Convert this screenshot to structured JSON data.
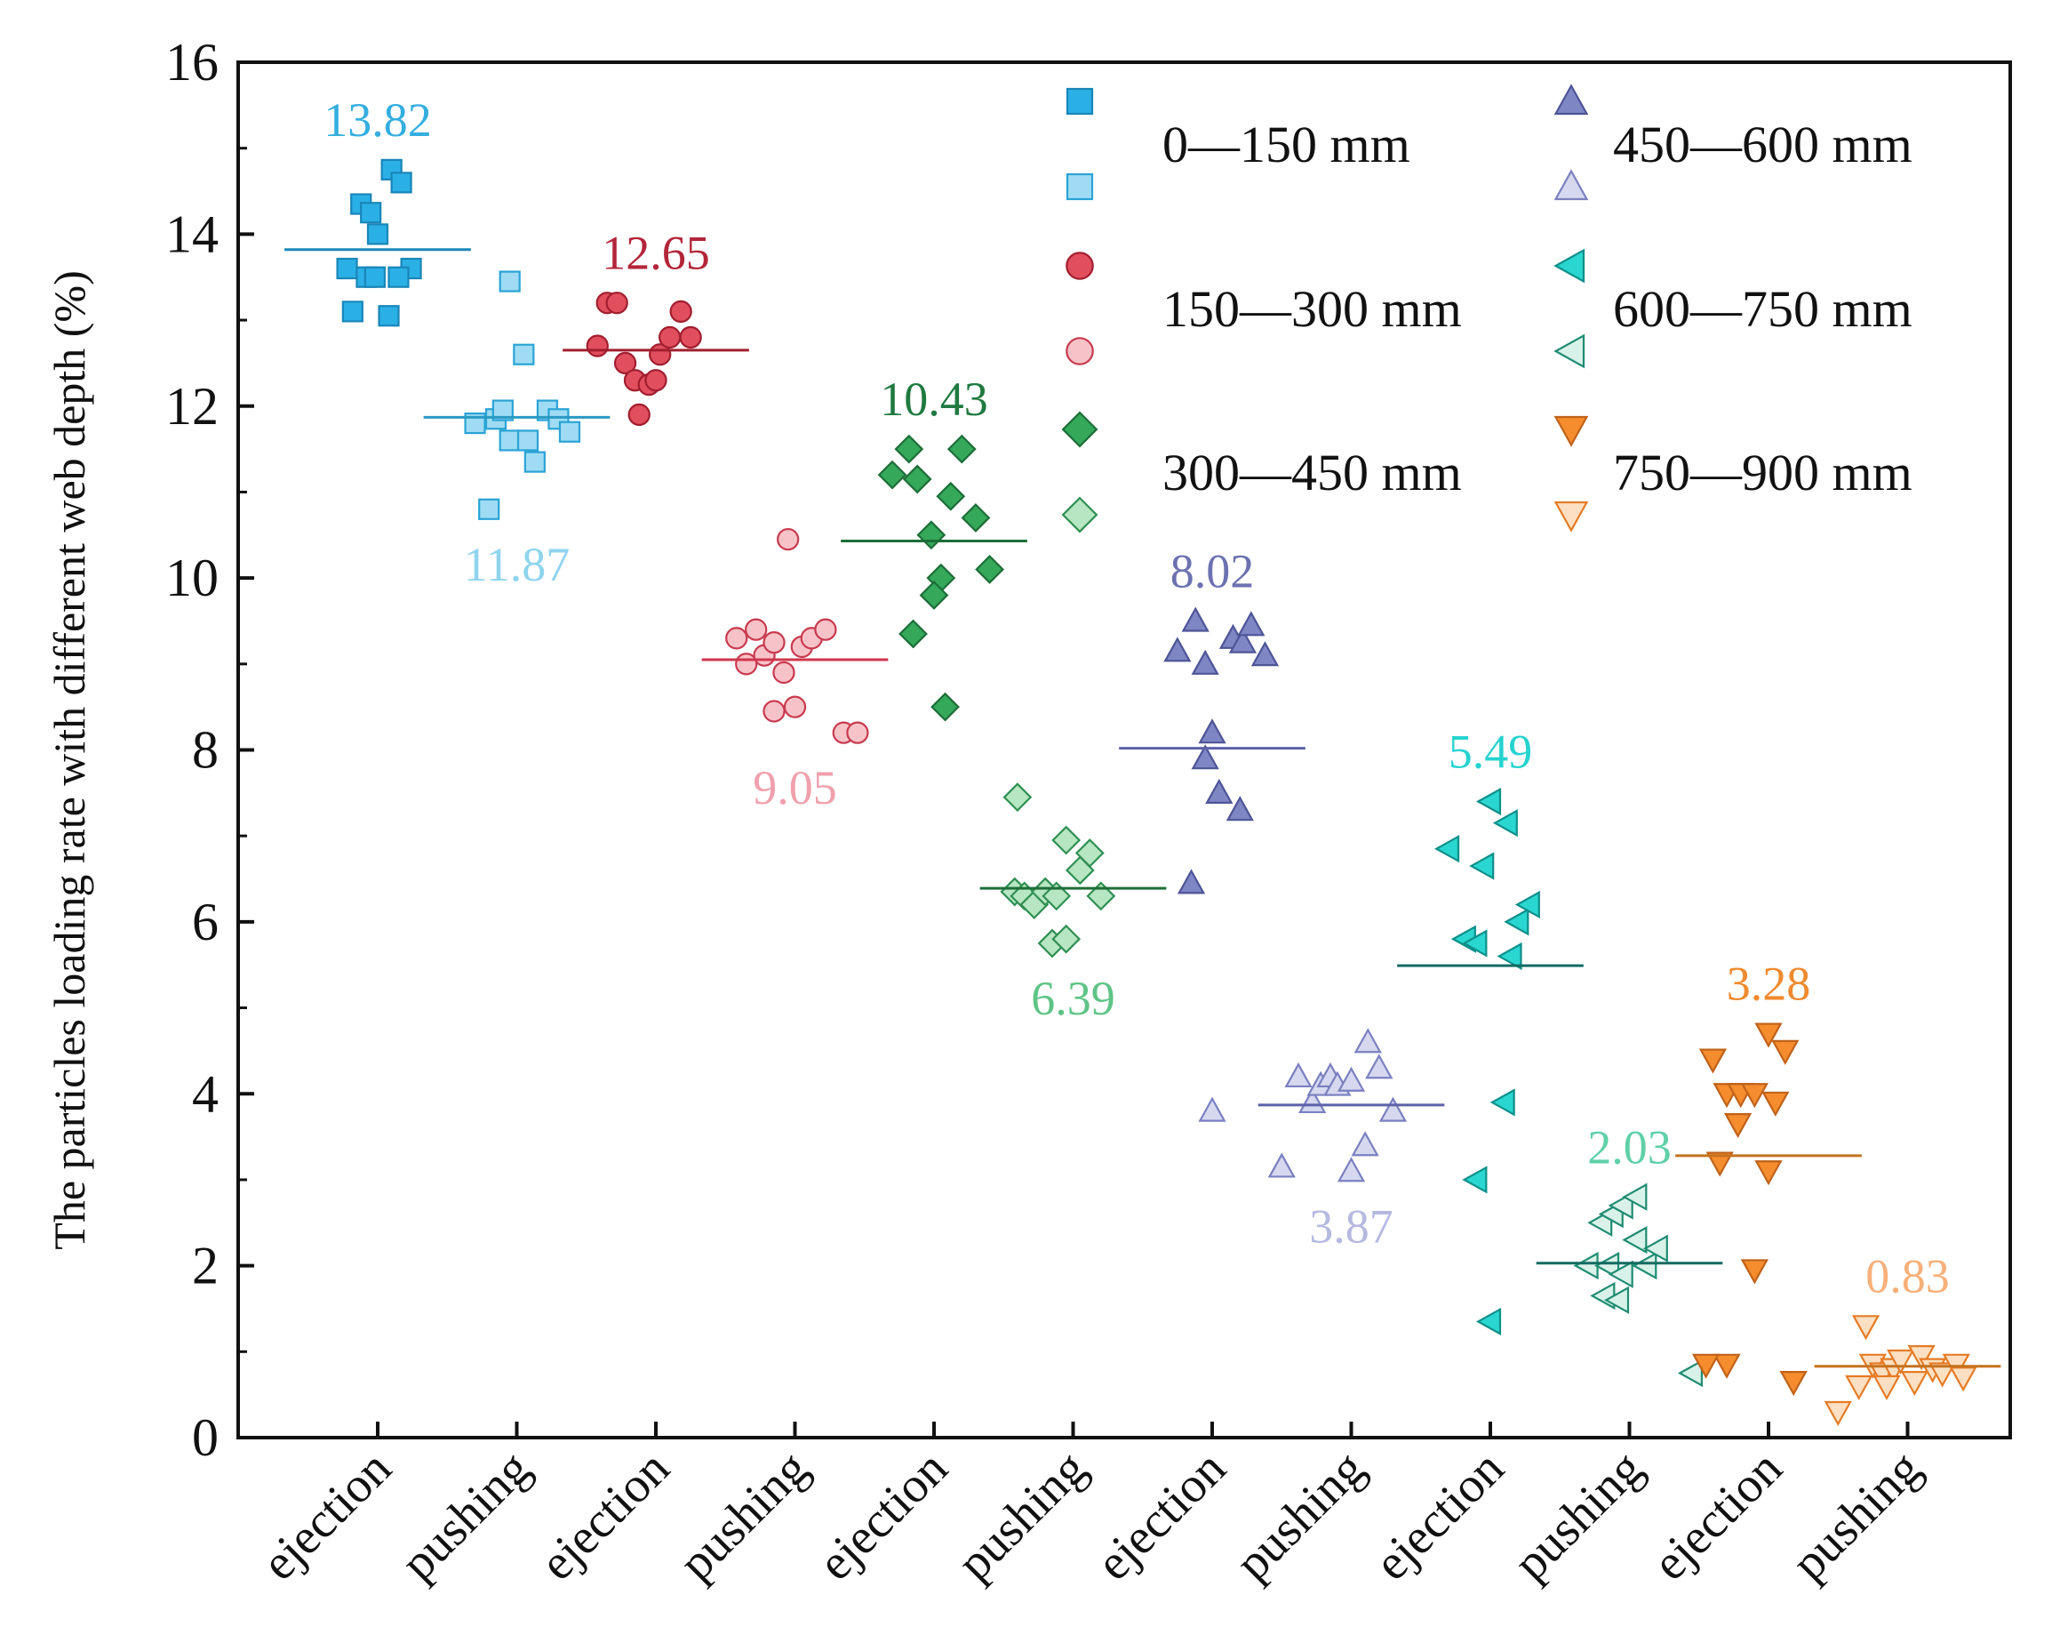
{
  "chart_data": {
    "type": "scatter",
    "title": "",
    "xlabel": "",
    "ylabel": "The particles loading rate with different web depth (%)",
    "ylim": [
      0,
      16
    ],
    "yticks": [
      0,
      2,
      4,
      6,
      8,
      10,
      12,
      14,
      16
    ],
    "y_minor_step": 1,
    "categories": [
      "ejection",
      "pushing",
      "ejection",
      "pushing",
      "ejection",
      "pushing",
      "ejection",
      "pushing",
      "ejection",
      "pushing",
      "ejection",
      "pushing"
    ],
    "grid": false,
    "legend_position": "top-right",
    "series": [
      {
        "name": "0—150 mm ejection",
        "legend": "0—150 mm",
        "category_index": 0,
        "marker": "square",
        "fill": "#2bb0e6",
        "stroke": "#1a86b8",
        "mean": 13.82,
        "mean_label": "13.82",
        "label_position": "above",
        "label_color": "#34aee0",
        "line_color": "#1a86b8",
        "points": [
          [
            -0.22,
            13.6
          ],
          [
            -0.12,
            14.35
          ],
          [
            -0.05,
            14.25
          ],
          [
            0.0,
            14.0
          ],
          [
            -0.18,
            13.1
          ],
          [
            -0.08,
            13.5
          ],
          [
            -0.02,
            13.5
          ],
          [
            0.1,
            14.75
          ],
          [
            0.17,
            14.6
          ],
          [
            0.24,
            13.6
          ],
          [
            0.15,
            13.5
          ],
          [
            0.08,
            13.05
          ]
        ]
      },
      {
        "name": "0—150 mm pushing",
        "legend": "",
        "category_index": 1,
        "marker": "square",
        "fill": "#9fdcf3",
        "stroke": "#2aa3d6",
        "mean": 11.87,
        "mean_label": "11.87",
        "label_position": "below",
        "label_color": "#8fd4ee",
        "line_color": "#2a9ac4",
        "points": [
          [
            -0.3,
            11.8
          ],
          [
            -0.15,
            11.85
          ],
          [
            -0.1,
            11.95
          ],
          [
            -0.05,
            11.6
          ],
          [
            0.08,
            11.6
          ],
          [
            0.13,
            11.35
          ],
          [
            0.22,
            11.95
          ],
          [
            0.3,
            11.85
          ],
          [
            0.38,
            11.7
          ],
          [
            -0.2,
            10.8
          ],
          [
            -0.05,
            13.45
          ],
          [
            0.05,
            12.6
          ]
        ]
      },
      {
        "name": "150—300 mm ejection",
        "legend": "150—300 mm",
        "category_index": 2,
        "marker": "circle",
        "fill": "#e14f5f",
        "stroke": "#a11e2e",
        "mean": 12.65,
        "mean_label": "12.65",
        "label_position": "above",
        "label_color": "#b3263a",
        "line_color": "#a11e2e",
        "points": [
          [
            -0.42,
            12.7
          ],
          [
            -0.35,
            13.2
          ],
          [
            -0.28,
            13.2
          ],
          [
            -0.22,
            12.5
          ],
          [
            -0.15,
            12.3
          ],
          [
            -0.05,
            12.25
          ],
          [
            0.03,
            12.6
          ],
          [
            0.1,
            12.8
          ],
          [
            0.18,
            13.1
          ],
          [
            0.25,
            12.8
          ],
          [
            -0.12,
            11.9
          ],
          [
            0.0,
            12.3
          ]
        ]
      },
      {
        "name": "150—300 mm pushing",
        "legend": "",
        "category_index": 3,
        "marker": "circle",
        "fill": "#f7c3c9",
        "stroke": "#c83a4e",
        "mean": 9.05,
        "mean_label": "9.05",
        "label_position": "below",
        "label_color": "#f0a0ad",
        "line_color": "#d0364d",
        "points": [
          [
            -0.42,
            9.3
          ],
          [
            -0.35,
            9.0
          ],
          [
            -0.28,
            9.4
          ],
          [
            -0.22,
            9.1
          ],
          [
            -0.15,
            9.25
          ],
          [
            -0.08,
            8.9
          ],
          [
            0.0,
            8.5
          ],
          [
            0.05,
            9.2
          ],
          [
            0.12,
            9.3
          ],
          [
            0.22,
            9.4
          ],
          [
            0.35,
            8.2
          ],
          [
            0.45,
            8.2
          ],
          [
            -0.05,
            10.45
          ],
          [
            -0.15,
            8.45
          ]
        ]
      },
      {
        "name": "300—450 mm ejection",
        "legend": "300—450 mm",
        "category_index": 4,
        "marker": "diamond",
        "fill": "#35a85a",
        "stroke": "#1d6e38",
        "mean": 10.43,
        "mean_label": "10.43",
        "label_position": "above",
        "label_color": "#1f7a40",
        "line_color": "#1d6e38",
        "points": [
          [
            -0.3,
            11.2
          ],
          [
            -0.18,
            11.5
          ],
          [
            -0.12,
            11.15
          ],
          [
            -0.02,
            10.5
          ],
          [
            0.05,
            10.0
          ],
          [
            0.12,
            10.95
          ],
          [
            0.2,
            11.5
          ],
          [
            0.3,
            10.7
          ],
          [
            0.4,
            10.1
          ],
          [
            -0.15,
            9.35
          ],
          [
            0.0,
            9.8
          ],
          [
            0.08,
            8.5
          ]
        ]
      },
      {
        "name": "300—450 mm pushing",
        "legend": "",
        "category_index": 5,
        "marker": "diamond",
        "fill": "#b7e6c2",
        "stroke": "#2f8f52",
        "mean": 6.39,
        "mean_label": "6.39",
        "label_position": "below",
        "label_color": "#5fc486",
        "line_color": "#1d6e38",
        "points": [
          [
            -0.42,
            6.35
          ],
          [
            -0.35,
            6.3
          ],
          [
            -0.28,
            6.2
          ],
          [
            -0.2,
            6.35
          ],
          [
            -0.12,
            6.3
          ],
          [
            -0.05,
            6.95
          ],
          [
            0.05,
            6.6
          ],
          [
            0.12,
            6.8
          ],
          [
            0.2,
            6.3
          ],
          [
            -0.15,
            5.75
          ],
          [
            -0.05,
            5.8
          ],
          [
            -0.4,
            7.45
          ]
        ]
      },
      {
        "name": "450—600 mm ejection",
        "legend": "450—600 mm",
        "category_index": 6,
        "marker": "triangle-up",
        "fill": "#7f86c4",
        "stroke": "#4e5597",
        "mean": 8.02,
        "mean_label": "8.02",
        "label_position": "above",
        "label_color": "#6c72b0",
        "line_color": "#5b62a8",
        "points": [
          [
            -0.25,
            9.15
          ],
          [
            -0.12,
            9.5
          ],
          [
            -0.05,
            9.0
          ],
          [
            0.0,
            8.2
          ],
          [
            -0.05,
            7.9
          ],
          [
            0.05,
            7.5
          ],
          [
            0.15,
            9.3
          ],
          [
            0.22,
            9.25
          ],
          [
            0.28,
            9.45
          ],
          [
            0.38,
            9.1
          ],
          [
            0.2,
            7.3
          ],
          [
            -0.15,
            6.45
          ]
        ]
      },
      {
        "name": "450—600 mm pushing",
        "legend": "",
        "category_index": 7,
        "marker": "triangle-up",
        "fill": "#d6d8ef",
        "stroke": "#7a80c0",
        "mean": 3.87,
        "mean_label": "3.87",
        "label_position": "below",
        "label_color": "#b6b9e0",
        "line_color": "#5b62a8",
        "points": [
          [
            -1.0,
            3.8
          ],
          [
            -0.38,
            4.2
          ],
          [
            -0.28,
            3.9
          ],
          [
            -0.22,
            4.1
          ],
          [
            -0.15,
            4.2
          ],
          [
            -0.1,
            4.1
          ],
          [
            0.0,
            4.15
          ],
          [
            0.12,
            4.6
          ],
          [
            0.2,
            4.3
          ],
          [
            0.3,
            3.8
          ],
          [
            -0.5,
            3.15
          ],
          [
            0.0,
            3.1
          ],
          [
            0.1,
            3.4
          ]
        ]
      },
      {
        "name": "600—750 mm ejection",
        "legend": "600—750 mm",
        "category_index": 8,
        "marker": "triangle-left",
        "fill": "#2ad6d0",
        "stroke": "#0f8f8a",
        "mean": 5.49,
        "mean_label": "5.49",
        "label_position": "above",
        "label_color": "#26d3d0",
        "line_color": "#136b62",
        "points": [
          [
            -0.3,
            6.85
          ],
          [
            -0.18,
            5.8
          ],
          [
            -0.1,
            5.75
          ],
          [
            0.0,
            7.4
          ],
          [
            -0.05,
            6.65
          ],
          [
            0.12,
            7.15
          ],
          [
            0.15,
            5.6
          ],
          [
            0.2,
            6.0
          ],
          [
            0.28,
            6.2
          ],
          [
            0.1,
            3.9
          ],
          [
            -0.1,
            3.0
          ],
          [
            0.0,
            1.35
          ]
        ]
      },
      {
        "name": "600—750 mm pushing",
        "legend": "",
        "category_index": 9,
        "marker": "triangle-left",
        "fill": "#d9f2e9",
        "stroke": "#1f8c72",
        "mean": 2.03,
        "mean_label": "2.03",
        "label_position": "above",
        "label_color": "#5fd0a8",
        "line_color": "#136b62",
        "points": [
          [
            -0.3,
            2.0
          ],
          [
            -0.2,
            2.5
          ],
          [
            -0.12,
            2.6
          ],
          [
            -0.05,
            2.7
          ],
          [
            0.05,
            2.8
          ],
          [
            -0.15,
            2.0
          ],
          [
            -0.05,
            1.9
          ],
          [
            0.05,
            2.3
          ],
          [
            0.12,
            2.0
          ],
          [
            0.2,
            2.2
          ],
          [
            -0.18,
            1.65
          ],
          [
            -0.08,
            1.6
          ],
          [
            0.45,
            0.75
          ]
        ]
      },
      {
        "name": "750—900 mm ejection",
        "legend": "750—900 mm",
        "category_index": 10,
        "marker": "triangle-down",
        "fill": "#f58d2e",
        "stroke": "#c0621a",
        "mean": 3.28,
        "mean_label": "3.28",
        "label_position": "above",
        "label_color": "#f08a2e",
        "line_color": "#c4721e",
        "points": [
          [
            -0.4,
            4.4
          ],
          [
            -0.3,
            4.0
          ],
          [
            -0.2,
            4.0
          ],
          [
            -0.1,
            4.0
          ],
          [
            0.0,
            4.7
          ],
          [
            0.12,
            4.5
          ],
          [
            0.05,
            3.9
          ],
          [
            -0.22,
            3.65
          ],
          [
            -0.35,
            3.2
          ],
          [
            0.0,
            3.1
          ],
          [
            -0.1,
            1.95
          ],
          [
            -0.3,
            0.85
          ],
          [
            -0.45,
            0.85
          ],
          [
            0.18,
            0.65
          ]
        ]
      },
      {
        "name": "750—900 mm pushing",
        "legend": "",
        "category_index": 11,
        "marker": "triangle-down",
        "fill": "#fde0c3",
        "stroke": "#e57b25",
        "mean": 0.83,
        "mean_label": "0.83",
        "label_position": "above",
        "label_color": "#f7b07a",
        "line_color": "#c4721e",
        "points": [
          [
            -0.35,
            0.6
          ],
          [
            -0.25,
            0.85
          ],
          [
            -0.18,
            0.75
          ],
          [
            -0.1,
            0.8
          ],
          [
            -0.05,
            0.9
          ],
          [
            0.05,
            0.65
          ],
          [
            0.1,
            0.95
          ],
          [
            0.18,
            0.8
          ],
          [
            0.25,
            0.75
          ],
          [
            0.35,
            0.85
          ],
          [
            0.4,
            0.7
          ],
          [
            -0.3,
            1.3
          ],
          [
            -0.5,
            0.3
          ],
          [
            -0.15,
            0.6
          ]
        ]
      }
    ]
  }
}
